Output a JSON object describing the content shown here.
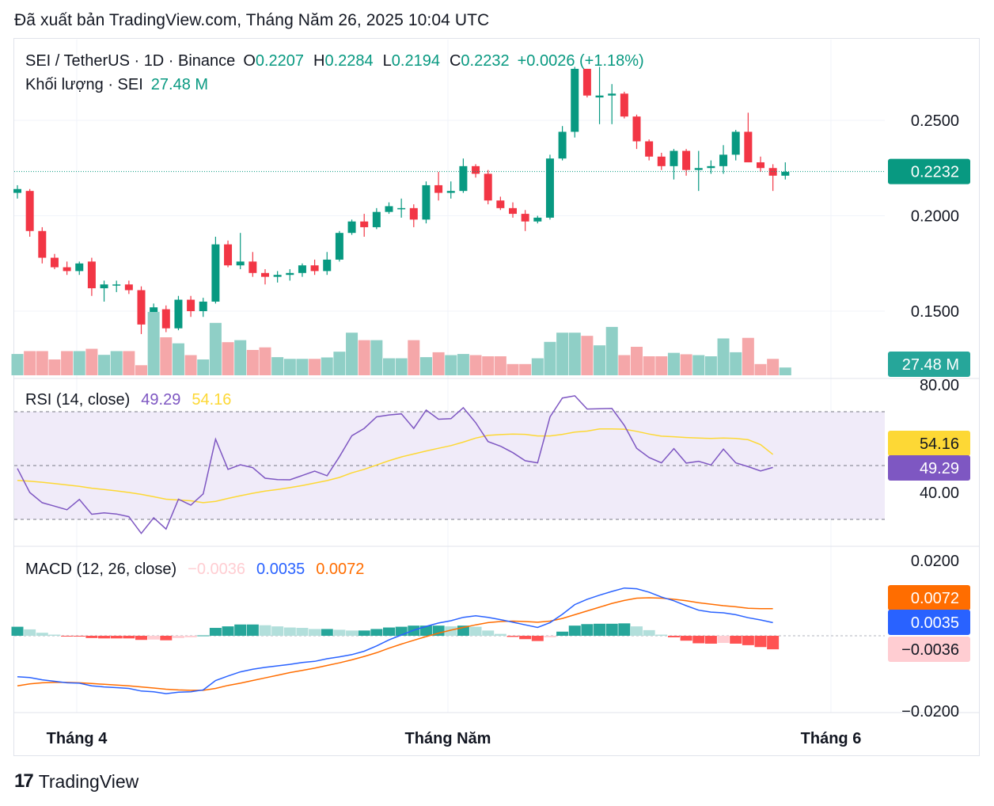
{
  "header": {
    "published": "Đã xuất bản TradingView.com, Tháng Năm 26, 2025 10:04 UTC"
  },
  "legend": {
    "symbol": "SEI / TetherUS · 1D · Binance",
    "o_label": "O",
    "o_value": "0.2207",
    "h_label": "H",
    "h_value": "0.2284",
    "l_label": "L",
    "l_value": "0.2194",
    "c_label": "C",
    "c_value": "0.2232",
    "change": "+0.0026 (+1.18%)",
    "volume_label": "Khối lượng · SEI",
    "volume_value": "27.48 M"
  },
  "rsi_legend": {
    "label": "RSI (14, close)",
    "rsi": "49.29",
    "ma": "54.16"
  },
  "macd_legend": {
    "label": "MACD (12, 26, close)",
    "hist": "−0.0036",
    "macd": "0.0035",
    "signal": "0.0072"
  },
  "footer": {
    "brand": "TradingView",
    "logo_text": "17"
  },
  "colors": {
    "up": "#089981",
    "down": "#f23645",
    "up_vol": "#8fcfc6",
    "down_vol": "#f5a7a9",
    "rsi": "#7e57c2",
    "rsi_ma": "#fdd835",
    "macd": "#2962ff",
    "signal": "#ff6d00",
    "hist_up_strong": "#26a69a",
    "hist_up_weak": "#b2dfdb",
    "hist_dn_strong": "#ff5252",
    "hist_dn_weak": "#ffcdd2"
  },
  "chart_data": [
    {
      "type": "candlestick",
      "title": "SEI / TetherUS · 1D · Binance",
      "x_ticks": [
        "Tháng 4",
        "Tháng Năm",
        "Tháng 6"
      ],
      "y_ticks": [
        "0.2500",
        "0.2000",
        "0.1500"
      ],
      "ylim": [
        0.1345,
        0.2822
      ],
      "last_price": "0.2232",
      "volume_label": "27.48 M",
      "candles": [
        [
          0.212,
          0.216,
          0.209,
          0.214
        ],
        [
          0.213,
          0.214,
          0.189,
          0.192
        ],
        [
          0.192,
          0.194,
          0.175,
          0.178
        ],
        [
          0.178,
          0.18,
          0.172,
          0.173
        ],
        [
          0.173,
          0.176,
          0.169,
          0.171
        ],
        [
          0.171,
          0.176,
          0.169,
          0.175
        ],
        [
          0.176,
          0.178,
          0.158,
          0.162
        ],
        [
          0.162,
          0.166,
          0.155,
          0.164
        ],
        [
          0.164,
          0.166,
          0.16,
          0.164
        ],
        [
          0.164,
          0.166,
          0.159,
          0.161
        ],
        [
          0.161,
          0.163,
          0.138,
          0.143
        ],
        [
          0.144,
          0.154,
          0.13,
          0.152
        ],
        [
          0.151,
          0.153,
          0.139,
          0.141
        ],
        [
          0.141,
          0.158,
          0.14,
          0.156
        ],
        [
          0.156,
          0.158,
          0.147,
          0.15
        ],
        [
          0.15,
          0.157,
          0.147,
          0.155
        ],
        [
          0.155,
          0.189,
          0.154,
          0.185
        ],
        [
          0.185,
          0.187,
          0.173,
          0.174
        ],
        [
          0.174,
          0.191,
          0.172,
          0.176
        ],
        [
          0.176,
          0.181,
          0.168,
          0.17
        ],
        [
          0.17,
          0.172,
          0.164,
          0.168
        ],
        [
          0.168,
          0.171,
          0.165,
          0.169
        ],
        [
          0.169,
          0.172,
          0.166,
          0.17
        ],
        [
          0.17,
          0.175,
          0.168,
          0.174
        ],
        [
          0.174,
          0.177,
          0.169,
          0.171
        ],
        [
          0.171,
          0.181,
          0.169,
          0.177
        ],
        [
          0.177,
          0.192,
          0.176,
          0.191
        ],
        [
          0.191,
          0.198,
          0.19,
          0.197
        ],
        [
          0.197,
          0.201,
          0.189,
          0.194
        ],
        [
          0.194,
          0.204,
          0.193,
          0.202
        ],
        [
          0.202,
          0.207,
          0.201,
          0.205
        ],
        [
          0.204,
          0.209,
          0.199,
          0.204
        ],
        [
          0.204,
          0.206,
          0.194,
          0.198
        ],
        [
          0.198,
          0.218,
          0.196,
          0.216
        ],
        [
          0.216,
          0.223,
          0.208,
          0.212
        ],
        [
          0.212,
          0.218,
          0.209,
          0.213
        ],
        [
          0.213,
          0.23,
          0.212,
          0.226
        ],
        [
          0.226,
          0.227,
          0.22,
          0.222
        ],
        [
          0.222,
          0.224,
          0.206,
          0.208
        ],
        [
          0.208,
          0.21,
          0.203,
          0.204
        ],
        [
          0.204,
          0.207,
          0.199,
          0.201
        ],
        [
          0.201,
          0.203,
          0.192,
          0.197
        ],
        [
          0.197,
          0.2,
          0.196,
          0.199
        ],
        [
          0.199,
          0.232,
          0.198,
          0.23
        ],
        [
          0.23,
          0.247,
          0.229,
          0.244
        ],
        [
          0.244,
          0.278,
          0.241,
          0.277
        ],
        [
          0.277,
          0.277,
          0.262,
          0.263
        ],
        [
          0.262,
          0.278,
          0.248,
          0.263
        ],
        [
          0.263,
          0.269,
          0.248,
          0.264
        ],
        [
          0.264,
          0.265,
          0.251,
          0.252
        ],
        [
          0.252,
          0.253,
          0.235,
          0.239
        ],
        [
          0.239,
          0.24,
          0.229,
          0.231
        ],
        [
          0.231,
          0.233,
          0.224,
          0.226
        ],
        [
          0.226,
          0.235,
          0.219,
          0.234
        ],
        [
          0.234,
          0.235,
          0.221,
          0.224
        ],
        [
          0.224,
          0.234,
          0.213,
          0.225
        ],
        [
          0.225,
          0.229,
          0.222,
          0.226
        ],
        [
          0.226,
          0.237,
          0.222,
          0.232
        ],
        [
          0.232,
          0.245,
          0.229,
          0.244
        ],
        [
          0.244,
          0.254,
          0.228,
          0.228
        ],
        [
          0.228,
          0.231,
          0.223,
          0.225
        ],
        [
          0.225,
          0.227,
          0.213,
          0.221
        ],
        [
          0.221,
          0.228,
          0.219,
          0.223
        ]
      ],
      "volume": [
        0.74,
        0.84,
        0.84,
        0.55,
        0.84,
        0.84,
        0.92,
        0.71,
        0.84,
        0.84,
        0.35,
        2.2,
        1.32,
        1.11,
        0.7,
        0.55,
        1.82,
        1.15,
        1.22,
        0.88,
        0.97,
        0.63,
        0.57,
        0.57,
        0.57,
        0.62,
        0.82,
        1.48,
        1.22,
        1.22,
        0.59,
        0.59,
        1.22,
        0.63,
        0.8,
        0.7,
        0.74,
        0.7,
        0.66,
        0.66,
        0.39,
        0.39,
        0.59,
        1.16,
        1.48,
        1.48,
        1.37,
        1.04,
        1.68,
        0.7,
        0.99,
        0.66,
        0.66,
        0.78,
        0.73,
        0.7,
        0.66,
        1.28,
        0.8,
        1.3,
        0.39,
        0.57,
        0.27
      ]
    },
    {
      "type": "line",
      "title": "RSI (14, close)",
      "ylim": [
        25.5,
        85.3
      ],
      "y_ticks": [
        "80.00",
        "40.00"
      ],
      "bands": [
        30,
        50,
        70
      ],
      "series": [
        {
          "name": "RSI",
          "values": [
            48.9,
            40.0,
            36.2,
            34.9,
            33.6,
            37.4,
            31.9,
            32.4,
            32.0,
            31.0,
            24.8,
            30.6,
            26.4,
            37.5,
            35.3,
            39.5,
            59.8,
            48.6,
            50.3,
            49.2,
            45.3,
            44.8,
            44.7,
            46.3,
            47.9,
            46.2,
            53.3,
            61.1,
            63.8,
            68.1,
            68.8,
            69.2,
            63.8,
            70.6,
            67.2,
            67.4,
            71.5,
            65.9,
            58.9,
            57.2,
            54.8,
            51.8,
            51.0,
            68.1,
            75.1,
            75.9,
            71.0,
            71.1,
            71.2,
            64.9,
            56.4,
            53.0,
            51.0,
            56.3,
            50.9,
            51.6,
            50.2,
            56.1,
            51.0,
            49.6,
            48.0,
            49.3
          ]
        },
        {
          "name": "RSI MA",
          "values": [
            44.5,
            44.2,
            43.8,
            43.3,
            42.8,
            42.3,
            41.6,
            41.1,
            40.6,
            40.0,
            39.3,
            38.4,
            37.5,
            37.2,
            36.9,
            36.2,
            36.7,
            37.8,
            38.8,
            39.7,
            40.5,
            41.1,
            41.8,
            42.6,
            43.5,
            44.4,
            45.6,
            47.3,
            48.6,
            50.2,
            51.8,
            53.2,
            54.3,
            55.4,
            56.4,
            57.4,
            58.7,
            60.2,
            61.2,
            61.5,
            61.7,
            61.6,
            61.0,
            61.0,
            61.6,
            62.4,
            62.8,
            63.6,
            63.6,
            63.5,
            62.7,
            61.7,
            60.9,
            60.7,
            60.4,
            60.2,
            60.1,
            60.2,
            60.1,
            59.6,
            57.8,
            54.16
          ]
        }
      ]
    },
    {
      "type": "bar+line",
      "title": "MACD (12, 26, close)",
      "ylim": [
        -0.0278,
        0.0268
      ],
      "y_ticks": [
        "0.0200",
        "−0.0200"
      ],
      "series": [
        {
          "name": "MACD",
          "values": [
            -0.0109,
            -0.0111,
            -0.0117,
            -0.0121,
            -0.0125,
            -0.0126,
            -0.0133,
            -0.0136,
            -0.0138,
            -0.014,
            -0.0147,
            -0.0149,
            -0.0154,
            -0.015,
            -0.0149,
            -0.0144,
            -0.0119,
            -0.0107,
            -0.0096,
            -0.0089,
            -0.0084,
            -0.008,
            -0.0076,
            -0.0071,
            -0.0068,
            -0.0061,
            -0.0056,
            -0.005,
            -0.0041,
            -0.0027,
            -0.0011,
            0.0002,
            0.0015,
            0.0025,
            0.0034,
            0.004,
            0.0049,
            0.0053,
            0.0049,
            0.0043,
            0.0036,
            0.0029,
            0.0022,
            0.0035,
            0.0057,
            0.0083,
            0.0097,
            0.0108,
            0.0118,
            0.0127,
            0.0125,
            0.0116,
            0.0103,
            0.0093,
            0.008,
            0.0068,
            0.0063,
            0.0061,
            0.0056,
            0.0048,
            0.0042,
            0.0035
          ]
        },
        {
          "name": "Signal",
          "values": [
            -0.0133,
            -0.0128,
            -0.0125,
            -0.0124,
            -0.0124,
            -0.0125,
            -0.0127,
            -0.0129,
            -0.0131,
            -0.0133,
            -0.0136,
            -0.0139,
            -0.0142,
            -0.0144,
            -0.0145,
            -0.0145,
            -0.014,
            -0.0132,
            -0.0126,
            -0.0119,
            -0.0112,
            -0.0105,
            -0.0098,
            -0.0092,
            -0.0086,
            -0.0079,
            -0.0072,
            -0.0064,
            -0.0055,
            -0.0045,
            -0.0033,
            -0.0022,
            -0.0012,
            -0.0002,
            0.0007,
            0.0015,
            0.0022,
            0.0029,
            0.0035,
            0.0038,
            0.0039,
            0.0038,
            0.0036,
            0.0039,
            0.0046,
            0.0056,
            0.0066,
            0.0076,
            0.0086,
            0.0094,
            0.01,
            0.0101,
            0.01,
            0.0097,
            0.0093,
            0.0088,
            0.0084,
            0.008,
            0.0077,
            0.0073,
            0.0072,
            0.0072
          ]
        },
        {
          "name": "Histogram",
          "values": [
            0.0024,
            0.0017,
            0.0008,
            0.0003,
            -0.0001,
            -0.0002,
            -0.0006,
            -0.0007,
            -0.0007,
            -0.0007,
            -0.0011,
            -0.001,
            -0.0012,
            -0.0006,
            -0.0004,
            0.0001,
            0.0021,
            0.0025,
            0.003,
            0.003,
            0.0028,
            0.0025,
            0.0022,
            0.0021,
            0.0018,
            0.0018,
            0.0016,
            0.0014,
            0.0014,
            0.0018,
            0.0022,
            0.0024,
            0.0027,
            0.0027,
            0.0027,
            0.0025,
            0.0027,
            0.0024,
            0.0014,
            0.0005,
            -0.0003,
            -0.0009,
            -0.0014,
            -0.0004,
            0.0011,
            0.0027,
            0.0031,
            0.0032,
            0.0032,
            0.0033,
            0.0025,
            0.0015,
            0.0003,
            -0.0004,
            -0.0013,
            -0.002,
            -0.0021,
            -0.0019,
            -0.0021,
            -0.0025,
            -0.003,
            -0.0036
          ]
        }
      ]
    }
  ]
}
